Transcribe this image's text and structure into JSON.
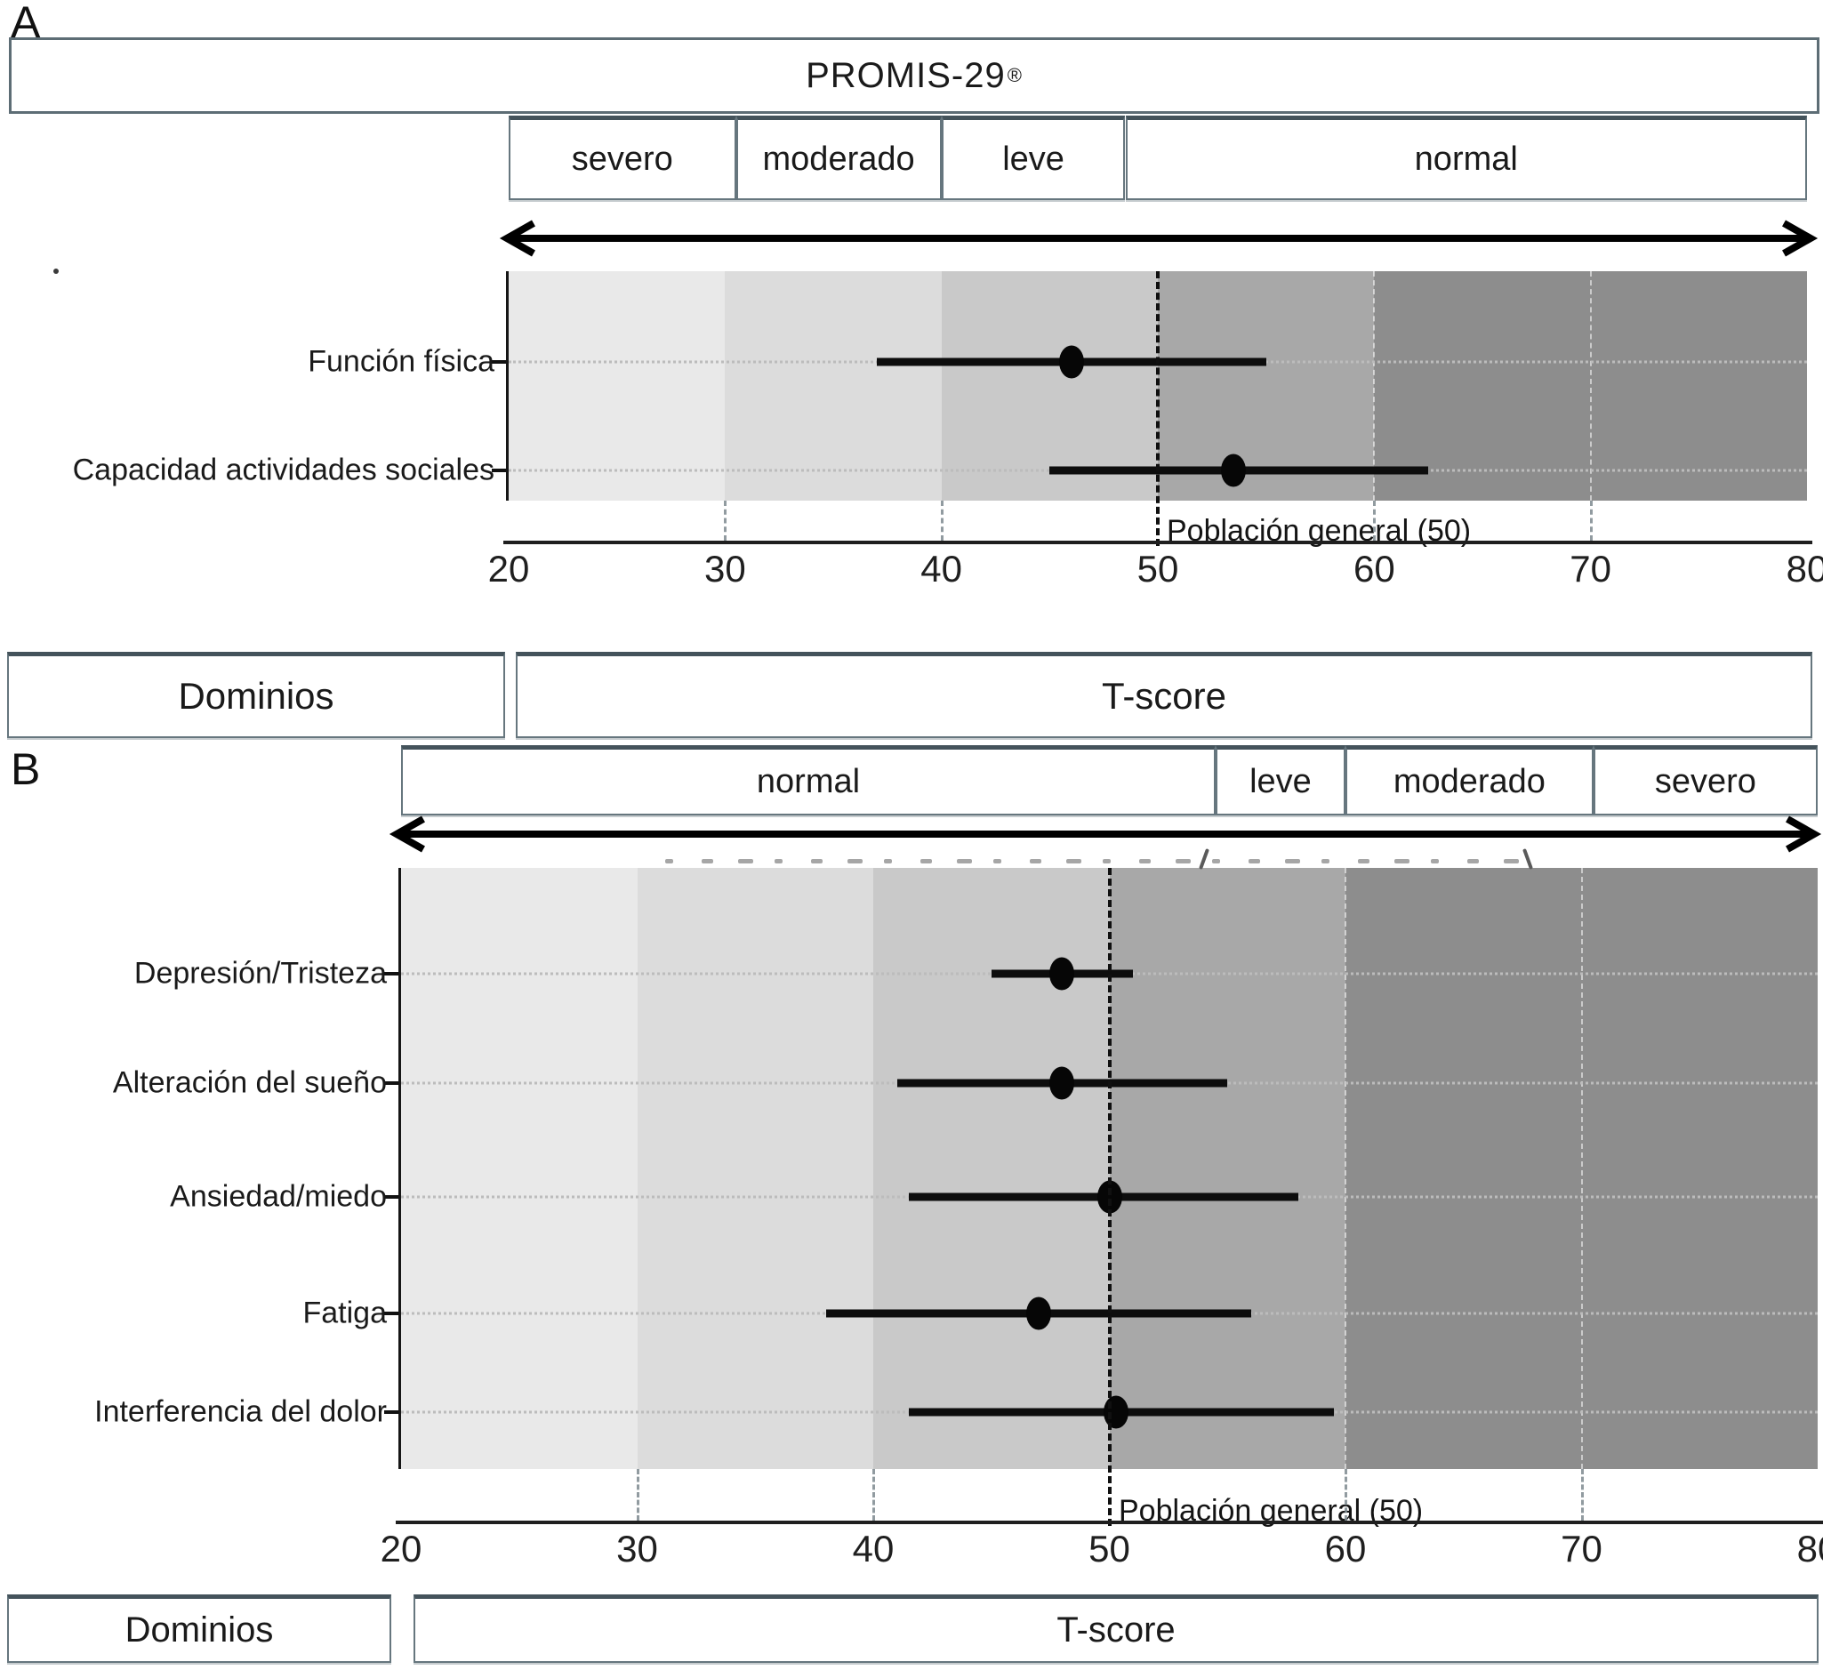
{
  "figure": {
    "panel_a_letter": "A",
    "panel_b_letter": "B"
  },
  "chart_data": [
    {
      "panel": "A",
      "type": "forest_dot_ci",
      "title": "PROMIS-29",
      "title_registered_mark": "®",
      "x_axis": {
        "min": 20,
        "max": 80,
        "ticks": [
          20,
          30,
          40,
          50,
          60,
          70,
          80
        ]
      },
      "severity_boxes": [
        {
          "label": "severo",
          "from": 20,
          "to": 30.5
        },
        {
          "label": "moderado",
          "from": 30.5,
          "to": 40
        },
        {
          "label": "leve",
          "from": 40,
          "to": 48.5
        },
        {
          "label": "normal",
          "from": 48.5,
          "to": 80
        }
      ],
      "shaded_bands": [
        {
          "from": 20,
          "to": 30,
          "color": "#e9e9e9"
        },
        {
          "from": 30,
          "to": 40,
          "color": "#dcdcdc"
        },
        {
          "from": 40,
          "to": 50,
          "color": "#c9c9c9"
        },
        {
          "from": 50,
          "to": 60,
          "color": "#a8a8a8"
        },
        {
          "from": 60,
          "to": 80,
          "color": "#8d8d8d"
        }
      ],
      "reference_line": {
        "value": 50,
        "label": "Población general (50)"
      },
      "rows": [
        {
          "label": "Función física",
          "t_score": 46,
          "ci_low": 37,
          "ci_high": 55
        },
        {
          "label": "Capacidad actividades sociales",
          "t_score": 53.5,
          "ci_low": 45,
          "ci_high": 62.5
        }
      ],
      "footer": {
        "domains_label": "Dominios",
        "tscore_label": "T-score"
      }
    },
    {
      "panel": "B",
      "type": "forest_dot_ci",
      "title": "",
      "x_axis": {
        "min": 20,
        "max": 80,
        "ticks": [
          20,
          30,
          40,
          50,
          60,
          70,
          80
        ]
      },
      "severity_boxes": [
        {
          "label": "normal",
          "from": 20,
          "to": 54.5
        },
        {
          "label": "leve",
          "from": 54.5,
          "to": 60
        },
        {
          "label": "moderado",
          "from": 60,
          "to": 70.5
        },
        {
          "label": "severo",
          "from": 70.5,
          "to": 80
        }
      ],
      "shaded_bands": [
        {
          "from": 20,
          "to": 30,
          "color": "#e9e9e9"
        },
        {
          "from": 30,
          "to": 40,
          "color": "#dcdcdc"
        },
        {
          "from": 40,
          "to": 50,
          "color": "#c9c9c9"
        },
        {
          "from": 50,
          "to": 60,
          "color": "#a8a8a8"
        },
        {
          "from": 60,
          "to": 80,
          "color": "#8d8d8d"
        }
      ],
      "reference_line": {
        "value": 50,
        "label": "Población general (50)"
      },
      "rows": [
        {
          "label": "Depresión/Tristeza",
          "t_score": 48,
          "ci_low": 45,
          "ci_high": 51
        },
        {
          "label": "Alteración del sueño",
          "t_score": 48,
          "ci_low": 41,
          "ci_high": 55
        },
        {
          "label": "Ansiedad/miedo",
          "t_score": 50,
          "ci_low": 41.5,
          "ci_high": 58
        },
        {
          "label": "Fatiga",
          "t_score": 47,
          "ci_low": 38,
          "ci_high": 56
        },
        {
          "label": "Interferencia del dolor",
          "t_score": 50.3,
          "ci_low": 41.5,
          "ci_high": 59.5
        }
      ],
      "footer": {
        "domains_label": "Dominios",
        "tscore_label": "T-score"
      },
      "obscured_text_artifact": true
    }
  ]
}
